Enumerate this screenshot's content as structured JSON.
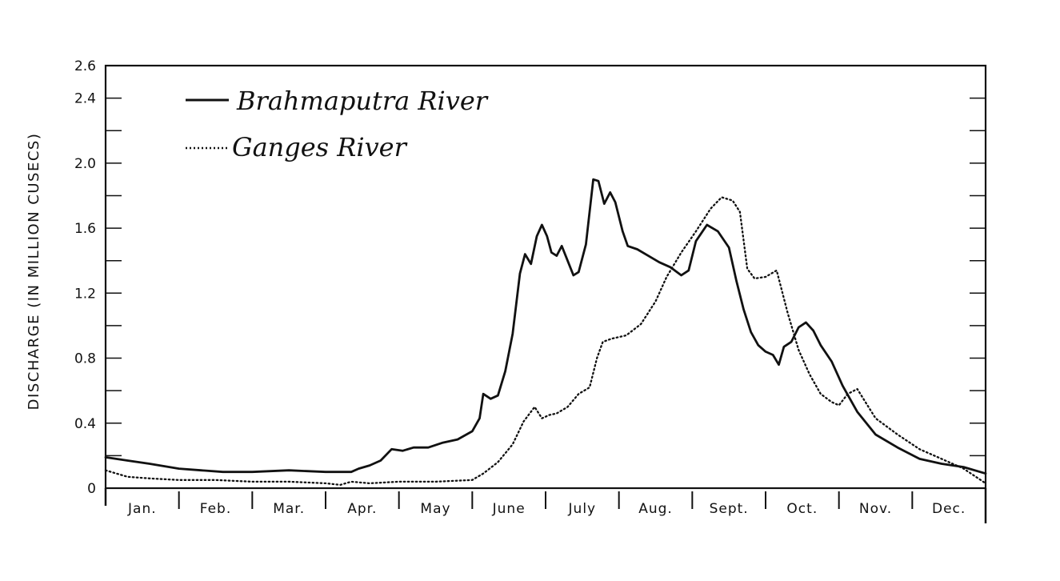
{
  "chart_data": {
    "type": "line",
    "title": "",
    "xlabel": "",
    "ylabel": "DISCHARGE (IN MILLION CUSECS)",
    "ylim": [
      0,
      2.6
    ],
    "yticks": [
      {
        "value": 0,
        "label": "0"
      },
      {
        "value": 0.4,
        "label": "0.4"
      },
      {
        "value": 0.8,
        "label": "0.8"
      },
      {
        "value": 1.2,
        "label": "1.2"
      },
      {
        "value": 1.6,
        "label": "1.6"
      },
      {
        "value": 2.0,
        "label": "2.0"
      },
      {
        "value": 2.4,
        "label": "2.4"
      },
      {
        "value": 2.6,
        "label": "2.6"
      }
    ],
    "ytick_minor_step": 0.2,
    "xlim": [
      0,
      12
    ],
    "categories": [
      "Jan.",
      "Feb.",
      "Mar.",
      "Apr.",
      "May",
      "June",
      "July",
      "Aug.",
      "Sept.",
      "Oct.",
      "Nov.",
      "Dec."
    ],
    "grid": false,
    "legend_position": "top-left",
    "series": [
      {
        "name": "Brahmaputra River",
        "style": "solid",
        "color": "#111111",
        "points": [
          [
            0.0,
            0.19
          ],
          [
            0.3,
            0.17
          ],
          [
            0.6,
            0.15
          ],
          [
            1.0,
            0.12
          ],
          [
            1.3,
            0.11
          ],
          [
            1.6,
            0.1
          ],
          [
            2.0,
            0.1
          ],
          [
            2.5,
            0.11
          ],
          [
            3.0,
            0.1
          ],
          [
            3.35,
            0.1
          ],
          [
            3.45,
            0.12
          ],
          [
            3.6,
            0.14
          ],
          [
            3.75,
            0.17
          ],
          [
            3.9,
            0.24
          ],
          [
            4.05,
            0.23
          ],
          [
            4.2,
            0.25
          ],
          [
            4.4,
            0.25
          ],
          [
            4.6,
            0.28
          ],
          [
            4.8,
            0.3
          ],
          [
            5.0,
            0.35
          ],
          [
            5.1,
            0.43
          ],
          [
            5.15,
            0.58
          ],
          [
            5.25,
            0.55
          ],
          [
            5.35,
            0.57
          ],
          [
            5.45,
            0.72
          ],
          [
            5.55,
            0.95
          ],
          [
            5.65,
            1.32
          ],
          [
            5.72,
            1.44
          ],
          [
            5.8,
            1.38
          ],
          [
            5.88,
            1.55
          ],
          [
            5.95,
            1.62
          ],
          [
            6.02,
            1.55
          ],
          [
            6.08,
            1.45
          ],
          [
            6.15,
            1.43
          ],
          [
            6.22,
            1.49
          ],
          [
            6.3,
            1.4
          ],
          [
            6.38,
            1.31
          ],
          [
            6.45,
            1.33
          ],
          [
            6.55,
            1.5
          ],
          [
            6.65,
            1.9
          ],
          [
            6.72,
            1.89
          ],
          [
            6.8,
            1.75
          ],
          [
            6.88,
            1.82
          ],
          [
            6.95,
            1.76
          ],
          [
            7.05,
            1.58
          ],
          [
            7.12,
            1.49
          ],
          [
            7.25,
            1.47
          ],
          [
            7.4,
            1.43
          ],
          [
            7.55,
            1.39
          ],
          [
            7.7,
            1.36
          ],
          [
            7.85,
            1.31
          ],
          [
            7.95,
            1.34
          ],
          [
            8.05,
            1.52
          ],
          [
            8.2,
            1.62
          ],
          [
            8.35,
            1.58
          ],
          [
            8.5,
            1.48
          ],
          [
            8.6,
            1.28
          ],
          [
            8.7,
            1.1
          ],
          [
            8.8,
            0.96
          ],
          [
            8.9,
            0.88
          ],
          [
            9.0,
            0.84
          ],
          [
            9.1,
            0.82
          ],
          [
            9.18,
            0.76
          ],
          [
            9.25,
            0.87
          ],
          [
            9.35,
            0.9
          ],
          [
            9.45,
            0.99
          ],
          [
            9.55,
            1.02
          ],
          [
            9.65,
            0.97
          ],
          [
            9.75,
            0.88
          ],
          [
            9.9,
            0.78
          ],
          [
            10.05,
            0.63
          ],
          [
            10.25,
            0.47
          ],
          [
            10.5,
            0.33
          ],
          [
            10.8,
            0.25
          ],
          [
            11.1,
            0.18
          ],
          [
            11.4,
            0.15
          ],
          [
            11.7,
            0.13
          ],
          [
            12.0,
            0.09
          ]
        ]
      },
      {
        "name": "Ganges River",
        "style": "dotted",
        "color": "#111111",
        "points": [
          [
            0.0,
            0.11
          ],
          [
            0.3,
            0.07
          ],
          [
            0.6,
            0.06
          ],
          [
            1.0,
            0.05
          ],
          [
            1.5,
            0.05
          ],
          [
            2.0,
            0.04
          ],
          [
            2.5,
            0.04
          ],
          [
            3.0,
            0.03
          ],
          [
            3.2,
            0.02
          ],
          [
            3.35,
            0.04
          ],
          [
            3.6,
            0.03
          ],
          [
            4.0,
            0.04
          ],
          [
            4.5,
            0.04
          ],
          [
            5.0,
            0.05
          ],
          [
            5.15,
            0.09
          ],
          [
            5.35,
            0.16
          ],
          [
            5.55,
            0.27
          ],
          [
            5.7,
            0.41
          ],
          [
            5.85,
            0.5
          ],
          [
            5.95,
            0.43
          ],
          [
            6.05,
            0.45
          ],
          [
            6.15,
            0.46
          ],
          [
            6.3,
            0.5
          ],
          [
            6.45,
            0.58
          ],
          [
            6.6,
            0.62
          ],
          [
            6.7,
            0.8
          ],
          [
            6.78,
            0.9
          ],
          [
            6.9,
            0.92
          ],
          [
            7.1,
            0.94
          ],
          [
            7.3,
            1.01
          ],
          [
            7.5,
            1.15
          ],
          [
            7.65,
            1.3
          ],
          [
            7.85,
            1.45
          ],
          [
            8.05,
            1.58
          ],
          [
            8.25,
            1.72
          ],
          [
            8.4,
            1.79
          ],
          [
            8.55,
            1.77
          ],
          [
            8.65,
            1.7
          ],
          [
            8.75,
            1.35
          ],
          [
            8.85,
            1.29
          ],
          [
            9.0,
            1.3
          ],
          [
            9.15,
            1.34
          ],
          [
            9.3,
            1.08
          ],
          [
            9.45,
            0.85
          ],
          [
            9.6,
            0.7
          ],
          [
            9.75,
            0.58
          ],
          [
            9.9,
            0.53
          ],
          [
            10.0,
            0.51
          ],
          [
            10.12,
            0.58
          ],
          [
            10.25,
            0.61
          ],
          [
            10.5,
            0.43
          ],
          [
            10.8,
            0.33
          ],
          [
            11.1,
            0.24
          ],
          [
            11.4,
            0.18
          ],
          [
            11.7,
            0.12
          ],
          [
            12.0,
            0.03
          ]
        ]
      }
    ]
  }
}
